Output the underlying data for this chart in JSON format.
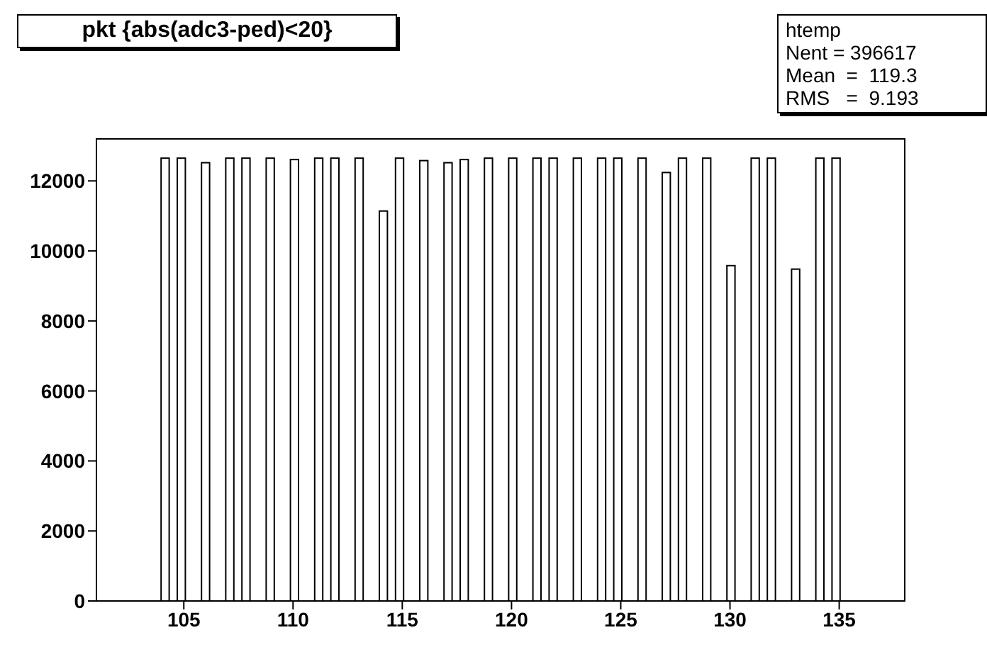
{
  "chart_data": {
    "type": "histogram",
    "title": "pkt {abs(adc3-ped)<20}",
    "annotations": [
      "htemp",
      "Nent = 396617",
      "Mean  =  119.3",
      "RMS   =  9.193"
    ],
    "bins": [
      101,
      101.37,
      101.74,
      102.11,
      102.48,
      102.85,
      103.22,
      103.59,
      103.96,
      104.33,
      104.7,
      105.07,
      105.44,
      105.81,
      106.18,
      106.55,
      106.92,
      107.29,
      107.66,
      108.03,
      108.4,
      108.77,
      109.14,
      109.51,
      109.88,
      110.25,
      110.62,
      110.99,
      111.36,
      111.73,
      112.1,
      112.47,
      112.84,
      113.21,
      113.58,
      113.95,
      114.32,
      114.69,
      115.06,
      115.43,
      115.8,
      116.17,
      116.54,
      116.91,
      117.28,
      117.65,
      118.02,
      118.39,
      118.76,
      119.13,
      119.5,
      119.87,
      120.24,
      120.61,
      120.98,
      121.35,
      121.72,
      122.09,
      122.46,
      122.83,
      123.2,
      123.57,
      123.94,
      124.31,
      124.68,
      125.05,
      125.42,
      125.79,
      126.16,
      126.53,
      126.9,
      127.27,
      127.64,
      128.01,
      128.38,
      128.75,
      129.12,
      129.49,
      129.86,
      130.23,
      130.6,
      130.97,
      131.34,
      131.71,
      132.08,
      132.45,
      132.82,
      133.19,
      133.56,
      133.93,
      134.3,
      134.67,
      135.04,
      135.41,
      135.78,
      136.15,
      136.52,
      136.89,
      137.26,
      137.63,
      138
    ],
    "values": [
      0,
      0,
      0,
      0,
      0,
      0,
      0,
      0,
      12650,
      0,
      12650,
      0,
      0,
      12520,
      0,
      0,
      12650,
      0,
      12650,
      0,
      0,
      12650,
      0,
      0,
      12610,
      0,
      0,
      12650,
      0,
      12650,
      0,
      0,
      12650,
      0,
      0,
      11140,
      0,
      12650,
      0,
      0,
      12580,
      0,
      0,
      12520,
      0,
      12610,
      0,
      0,
      12650,
      0,
      0,
      12650,
      0,
      0,
      12650,
      0,
      12650,
      0,
      0,
      12650,
      0,
      0,
      12650,
      0,
      12650,
      0,
      0,
      12650,
      0,
      0,
      12240,
      0,
      12650,
      0,
      0,
      12650,
      0,
      0,
      9580,
      0,
      0,
      12650,
      0,
      12650,
      0,
      0,
      9480,
      0,
      0,
      12650,
      0,
      12650,
      0,
      0,
      0,
      0,
      0,
      0,
      0,
      0
    ],
    "color": "#000000",
    "xlim": [
      101,
      138
    ],
    "xticks": [
      105,
      110,
      115,
      120,
      125,
      130,
      135
    ],
    "ylim": [
      0,
      13200
    ],
    "yticks": [
      0,
      2000,
      4000,
      6000,
      8000,
      10000,
      12000
    ],
    "grid": false
  }
}
